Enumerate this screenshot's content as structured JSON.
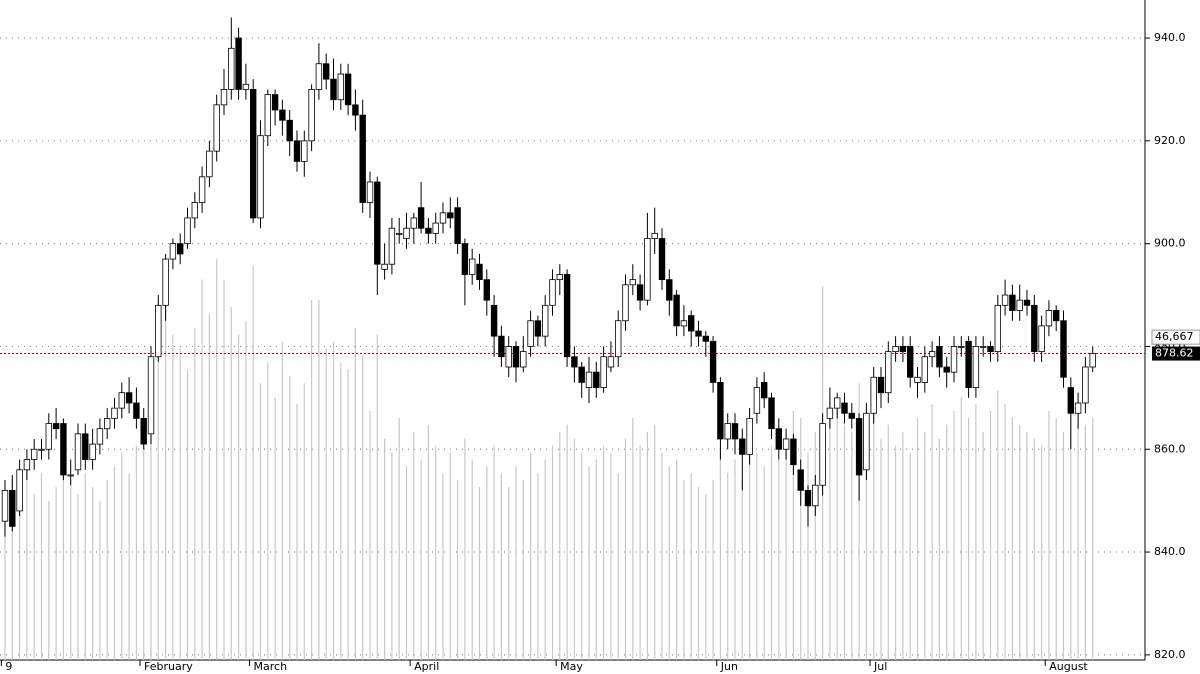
{
  "chart_data": {
    "type": "candlestick",
    "open": [
      846,
      852,
      848,
      856,
      858,
      860,
      860,
      865,
      865,
      855,
      856,
      863,
      858,
      861,
      864,
      866,
      868,
      871,
      869,
      866,
      863,
      878,
      888,
      897,
      900,
      900,
      905,
      908,
      913,
      918,
      927,
      930,
      940,
      930,
      930,
      905,
      921,
      929,
      926,
      924,
      920,
      916,
      920,
      930,
      935,
      932,
      928,
      933,
      927,
      925,
      908,
      912,
      895,
      896,
      902,
      901,
      903,
      907,
      903,
      902,
      904,
      906,
      907,
      900,
      894,
      896,
      893,
      888,
      882,
      876,
      880,
      876,
      880,
      885,
      882,
      888,
      893,
      894,
      878,
      876,
      872,
      875,
      872,
      876,
      878,
      885,
      892,
      892,
      889,
      901,
      901,
      893,
      890,
      884,
      886,
      883,
      882,
      881,
      873,
      862,
      865,
      862,
      859,
      867,
      873,
      870,
      864,
      860,
      862,
      856,
      852,
      849,
      853,
      866,
      868,
      869,
      867,
      866,
      856,
      867,
      874,
      871,
      879,
      880,
      880,
      873,
      873,
      878,
      880,
      876,
      875,
      880,
      881,
      872,
      880,
      880,
      879,
      888,
      890,
      887,
      889,
      888,
      879,
      884,
      887,
      885,
      872,
      867,
      869,
      876
    ],
    "high": [
      854,
      855,
      858,
      860,
      862,
      862,
      867,
      868,
      866,
      858,
      865,
      865,
      864,
      866,
      868,
      870,
      873,
      874,
      872,
      868,
      880,
      890,
      898,
      901,
      902,
      907,
      910,
      915,
      920,
      929,
      934,
      944,
      942,
      935,
      932,
      924,
      930,
      930,
      928,
      926,
      922,
      922,
      931,
      939,
      937,
      936,
      935,
      935,
      930,
      928,
      914,
      913,
      900,
      905,
      905,
      906,
      906,
      912,
      905,
      906,
      908,
      909,
      909,
      901,
      899,
      898,
      895,
      890,
      884,
      882,
      881,
      882,
      887,
      886,
      890,
      895,
      896,
      895,
      880,
      877,
      878,
      877,
      880,
      881,
      887,
      894,
      896,
      894,
      906,
      907,
      903,
      895,
      891,
      888,
      887,
      885,
      883,
      882,
      874,
      867,
      867,
      864,
      868,
      874,
      875,
      871,
      866,
      864,
      863,
      858,
      853,
      855,
      867,
      872,
      871,
      871,
      869,
      867,
      869,
      876,
      876,
      881,
      882,
      882,
      882,
      876,
      880,
      881,
      882,
      878,
      882,
      882,
      882,
      882,
      882,
      881,
      890,
      893,
      892,
      892,
      891,
      890,
      886,
      889,
      888,
      887,
      874,
      871,
      878,
      880
    ],
    "low": [
      843,
      844,
      847,
      854,
      856,
      858,
      858,
      862,
      854,
      853,
      855,
      856,
      856,
      859,
      862,
      864,
      866,
      867,
      864,
      860,
      861,
      877,
      885,
      895,
      896,
      899,
      903,
      906,
      911,
      916,
      925,
      928,
      928,
      928,
      904,
      903,
      919,
      923,
      921,
      917,
      914,
      913,
      918,
      928,
      930,
      926,
      926,
      925,
      922,
      906,
      905,
      890,
      893,
      894,
      900,
      899,
      900,
      902,
      900,
      900,
      902,
      903,
      898,
      888,
      892,
      891,
      886,
      878,
      876,
      874,
      873,
      875,
      878,
      880,
      880,
      886,
      890,
      876,
      873,
      870,
      869,
      870,
      871,
      875,
      876,
      883,
      890,
      887,
      888,
      898,
      891,
      886,
      882,
      882,
      880,
      880,
      878,
      871,
      858,
      860,
      859,
      852,
      857,
      865,
      868,
      862,
      858,
      858,
      855,
      849,
      845,
      847,
      851,
      864,
      866,
      865,
      864,
      850,
      854,
      865,
      868,
      869,
      877,
      877,
      872,
      870,
      871,
      876,
      874,
      872,
      873,
      878,
      870,
      870,
      878,
      877,
      877,
      886,
      885,
      885,
      886,
      877,
      877,
      882,
      883,
      872,
      860,
      864,
      867,
      875
    ],
    "close": [
      852,
      845,
      856,
      858,
      860,
      860,
      865,
      864,
      855,
      855,
      863,
      858,
      861,
      864,
      866,
      868,
      871,
      869,
      866,
      861,
      878,
      888,
      897,
      900,
      898,
      905,
      908,
      913,
      918,
      927,
      930,
      938,
      930,
      931,
      905,
      921,
      929,
      926,
      924,
      920,
      916,
      920,
      930,
      935,
      932,
      928,
      933,
      927,
      925,
      908,
      912,
      896,
      896,
      903,
      902,
      903,
      905,
      903,
      902,
      904,
      906,
      905,
      900,
      894,
      897,
      893,
      889,
      882,
      878,
      880,
      876,
      879,
      885,
      882,
      888,
      893,
      894,
      878,
      876,
      873,
      875,
      872,
      878,
      878,
      885,
      892,
      893,
      889,
      901,
      902,
      893,
      889,
      884,
      885,
      883,
      882,
      881,
      873,
      862,
      865,
      862,
      859,
      866,
      872,
      870,
      864,
      860,
      862,
      857,
      852,
      849,
      853,
      865,
      868,
      870,
      867,
      866,
      855,
      867,
      874,
      871,
      879,
      880,
      879,
      874,
      874,
      878,
      879,
      876,
      875,
      880,
      880,
      872,
      880,
      880,
      879,
      888,
      890,
      887,
      889,
      888,
      879,
      884,
      887,
      885,
      874,
      867,
      869,
      876,
      878.62
    ],
    "volume": [
      22000,
      26000,
      25000,
      28000,
      24000,
      27000,
      23000,
      25000,
      29000,
      26000,
      24000,
      27000,
      25000,
      23000,
      26000,
      28000,
      30000,
      27000,
      31000,
      32000,
      44000,
      52000,
      56000,
      47000,
      45000,
      42000,
      48000,
      55000,
      50000,
      58000,
      55000,
      51000,
      47000,
      49000,
      57000,
      40000,
      43000,
      38000,
      46000,
      41000,
      37000,
      40000,
      52000,
      52000,
      45000,
      46000,
      43000,
      42000,
      48000,
      44000,
      36000,
      47000,
      32000,
      30000,
      35000,
      28000,
      33000,
      29000,
      34000,
      31000,
      27000,
      30000,
      26000,
      32000,
      29000,
      25000,
      28000,
      31000,
      27000,
      25000,
      28000,
      26000,
      30000,
      27000,
      29000,
      31000,
      33000,
      34000,
      32000,
      30000,
      28000,
      29000,
      31000,
      30000,
      27000,
      32000,
      35000,
      31000,
      33000,
      34000,
      30000,
      28000,
      29000,
      26000,
      27000,
      25000,
      24000,
      26000,
      30000,
      27000,
      29000,
      26000,
      32000,
      30000,
      28000,
      31000,
      29000,
      33000,
      36000,
      35000,
      30000,
      33000,
      54000,
      38000,
      36000,
      34000,
      33000,
      40000,
      35000,
      37000,
      32000,
      34000,
      31000,
      33000,
      30000,
      35000,
      33000,
      37000,
      32000,
      34000,
      36000,
      38000,
      35000,
      37000,
      33000,
      36000,
      39000,
      37000,
      35000,
      34000,
      33000,
      32000,
      31000,
      36000,
      35000,
      33000,
      37000,
      35000,
      34000,
      35000
    ],
    "ylim": [
      819,
      947.4
    ],
    "yticks": [
      {
        "value": 820,
        "label": "820.0"
      },
      {
        "value": 840,
        "label": "840.0"
      },
      {
        "value": 860,
        "label": "860.0"
      },
      {
        "value": 880,
        "label": "880.0"
      },
      {
        "value": 900,
        "label": "900.0"
      },
      {
        "value": 920,
        "label": "920.0"
      },
      {
        "value": 940,
        "label": "940.0"
      }
    ],
    "volume_lim": [
      0,
      95400
    ],
    "volume_marker": {
      "value": 46667,
      "label": "46,667"
    },
    "last_price": 878.62,
    "x_labels": [
      {
        "index": 0,
        "label": "9"
      },
      {
        "index": 19,
        "label": "February"
      },
      {
        "index": 34,
        "label": "March"
      },
      {
        "index": 56,
        "label": "April"
      },
      {
        "index": 76,
        "label": "May"
      },
      {
        "index": 98,
        "label": "Jun"
      },
      {
        "index": 119,
        "label": "Jul"
      },
      {
        "index": 143,
        "label": "August"
      }
    ],
    "grid": true,
    "up_color": "#ffffff",
    "down_color": "#000000",
    "volume_color": "#c8c8c8",
    "last_price_color": "#cc0000"
  }
}
